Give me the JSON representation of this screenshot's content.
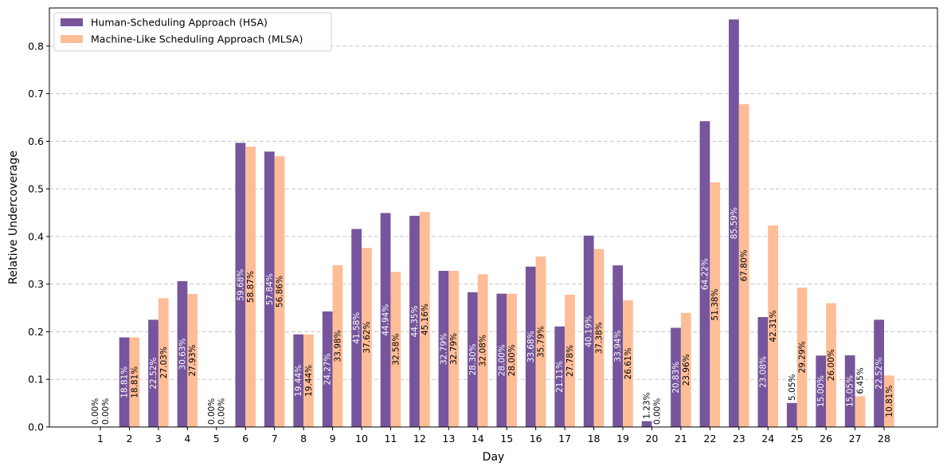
{
  "chart_data": {
    "type": "bar",
    "title": "",
    "xlabel": "Day",
    "ylabel": "Relative Undercoverage",
    "ylim": [
      0,
      0.88
    ],
    "yticks": [
      "0.0",
      "0.1",
      "0.2",
      "0.3",
      "0.4",
      "0.5",
      "0.6",
      "0.7",
      "0.8"
    ],
    "grid": "y-dashed",
    "legend_position": "top-left",
    "categories": [
      "1",
      "2",
      "3",
      "4",
      "5",
      "6",
      "7",
      "8",
      "9",
      "10",
      "11",
      "12",
      "13",
      "14",
      "15",
      "16",
      "17",
      "18",
      "19",
      "20",
      "21",
      "22",
      "23",
      "24",
      "25",
      "26",
      "27",
      "28"
    ],
    "series": [
      {
        "name": "Human-Scheduling Approach (HSA)",
        "color": "#76559c",
        "label_color": "#ffffff",
        "values": [
          0.0,
          0.1881,
          0.2252,
          0.3063,
          0.0,
          0.5968,
          0.5784,
          0.1944,
          0.2427,
          0.4158,
          0.4494,
          0.4435,
          0.3279,
          0.283,
          0.28,
          0.3368,
          0.2111,
          0.4019,
          0.3394,
          0.0123,
          0.2083,
          0.6422,
          0.8559,
          0.2308,
          0.0505,
          0.15,
          0.1505,
          0.2252
        ],
        "labels": [
          "0.00%",
          "18.81%",
          "22.52%",
          "30.63%",
          "0.00%",
          "59.68%",
          "57.84%",
          "19.44%",
          "24.27%",
          "41.58%",
          "44.94%",
          "44.35%",
          "32.79%",
          "28.30%",
          "28.00%",
          "33.68%",
          "21.11%",
          "40.19%",
          "33.94%",
          "1.23%",
          "20.83%",
          "64.22%",
          "85.59%",
          "23.08%",
          "5.05%",
          "15.00%",
          "15.05%",
          "22.52%"
        ]
      },
      {
        "name": "Machine-Like Scheduling Approach (MLSA)",
        "color": "#fdbd97",
        "label_color": "#000000",
        "values": [
          0.0,
          0.1881,
          0.2703,
          0.2793,
          0.0,
          0.5887,
          0.5686,
          0.1944,
          0.3398,
          0.3762,
          0.3258,
          0.4516,
          0.3279,
          0.3208,
          0.28,
          0.3579,
          0.2778,
          0.3738,
          0.2661,
          0.0,
          0.2396,
          0.5138,
          0.678,
          0.4231,
          0.2929,
          0.26,
          0.0645,
          0.1081
        ],
        "labels": [
          "0.00%",
          "18.81%",
          "27.03%",
          "27.93%",
          "0.00%",
          "58.87%",
          "56.86%",
          "19.44%",
          "33.98%",
          "37.62%",
          "32.58%",
          "45.16%",
          "32.79%",
          "32.08%",
          "28.00%",
          "35.79%",
          "27.78%",
          "37.38%",
          "26.61%",
          "0.00%",
          "23.96%",
          "51.38%",
          "67.80%",
          "42.31%",
          "29.29%",
          "26.00%",
          "6.45%",
          "10.81%"
        ]
      }
    ]
  }
}
